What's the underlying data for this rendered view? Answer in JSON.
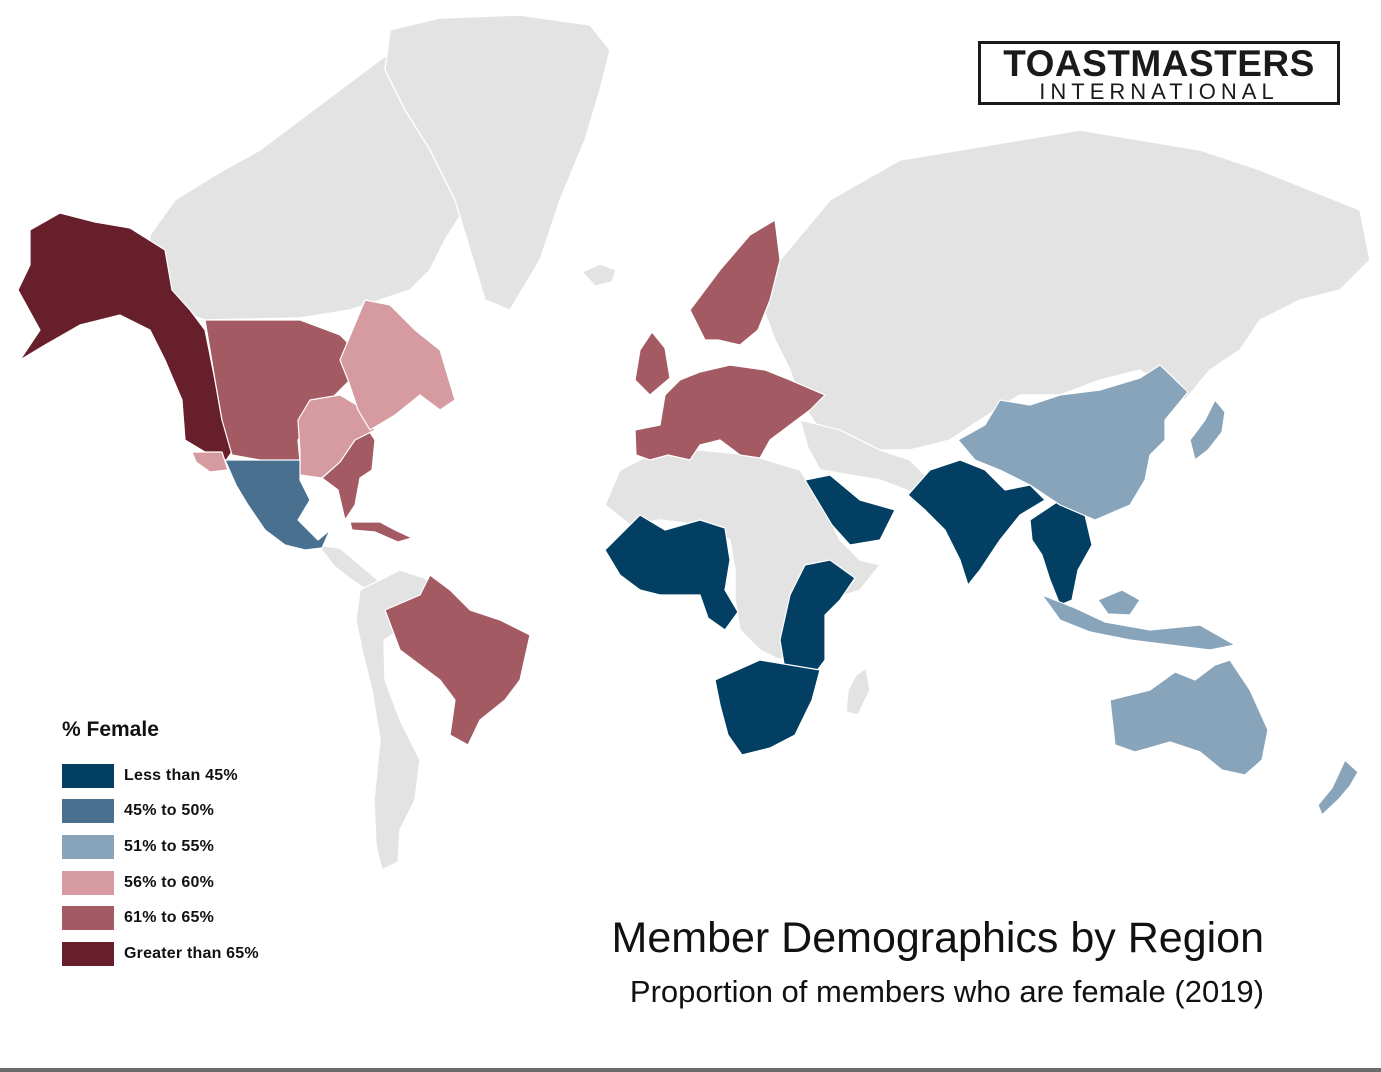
{
  "logo": {
    "line1": "TOASTMASTERS",
    "line2": "INTERNATIONAL"
  },
  "title": "Member Demographics by Region",
  "subtitle": "Proportion of members who are female (2019)",
  "legend": {
    "title": "% Female",
    "items": [
      {
        "label": "Less than 45%",
        "color": "#023f63"
      },
      {
        "label": "45% to 50%",
        "color": "#4a7090"
      },
      {
        "label": "51% to 55%",
        "color": "#88a4ba"
      },
      {
        "label": "56% to 60%",
        "color": "#d59ba0"
      },
      {
        "label": "61% to 65%",
        "color": "#a35a63"
      },
      {
        "label": "Greater than 65%",
        "color": "#67202b"
      }
    ]
  },
  "base_land_color": "#e3e3e3",
  "regions": [
    {
      "name": "Alaska and US West",
      "class": "Greater than 65%"
    },
    {
      "name": "Canada West",
      "class": "Greater than 65%"
    },
    {
      "name": "US Central and Midwest",
      "class": "61% to 65%"
    },
    {
      "name": "US South East",
      "class": "61% to 65%"
    },
    {
      "name": "US Great Lakes",
      "class": "56% to 60%"
    },
    {
      "name": "Canada East",
      "class": "56% to 60%"
    },
    {
      "name": "US South West",
      "class": "56% to 60%"
    },
    {
      "name": "Mexico",
      "class": "45% to 50%"
    },
    {
      "name": "Caribbean",
      "class": "61% to 65%"
    },
    {
      "name": "Brazil",
      "class": "61% to 65%"
    },
    {
      "name": "Europe",
      "class": "61% to 65%"
    },
    {
      "name": "Scandinavia",
      "class": "61% to 65%"
    },
    {
      "name": "United Kingdom and Ireland",
      "class": "61% to 65%"
    },
    {
      "name": "West Africa",
      "class": "Less than 45%"
    },
    {
      "name": "East Africa",
      "class": "Less than 45%"
    },
    {
      "name": "Southern Africa",
      "class": "Less than 45%"
    },
    {
      "name": "Arabian Peninsula",
      "class": "Less than 45%"
    },
    {
      "name": "South Asia",
      "class": "Less than 45%"
    },
    {
      "name": "Southeast Asia",
      "class": "Less than 45%"
    },
    {
      "name": "China",
      "class": "51% to 55%"
    },
    {
      "name": "Japan and Korea",
      "class": "51% to 55%"
    },
    {
      "name": "Indonesia and Philippines",
      "class": "51% to 55%"
    },
    {
      "name": "Australia",
      "class": "51% to 55%"
    },
    {
      "name": "New Zealand",
      "class": "51% to 55%"
    }
  ]
}
